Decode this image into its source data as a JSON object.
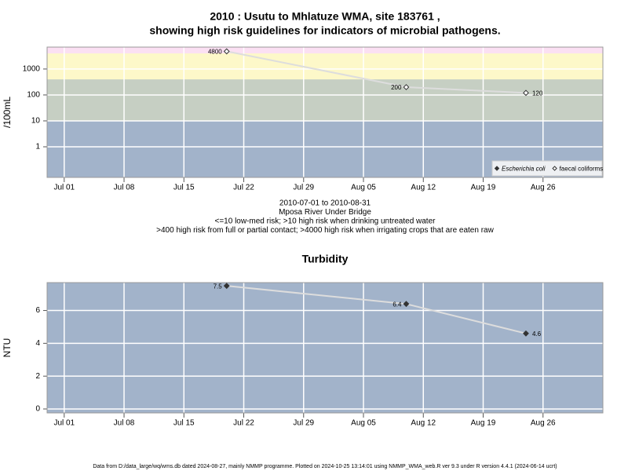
{
  "chart_data": [
    {
      "type": "line",
      "title": [
        "2010 : Usutu to Mhlatuze WMA, site 183761 ,",
        "showing high risk guidelines for indicators of microbial pathogens."
      ],
      "notes": [
        "2010-07-01 to 2010-08-31",
        "Mposa River Under Bridge",
        "<=10 low-med risk; >10 high risk when drinking untreated water",
        ">400 high risk from full or partial contact; >4000 high risk when irrigating crops that are eaten raw"
      ],
      "ylabel": "/100mL",
      "log_y": true,
      "x": [
        "2010-07-20",
        "2010-08-10",
        "2010-08-24"
      ],
      "series": [
        {
          "name": "Escherichia coli",
          "color": "#333333",
          "filled": true,
          "values": [
            null,
            null,
            null
          ]
        },
        {
          "name": "faecal coliforms",
          "color": "#333333",
          "filled": false,
          "values": [
            4800,
            200,
            120
          ]
        }
      ],
      "thresholds": [
        10,
        400,
        4000
      ],
      "band_colors": [
        "#a2b3ca",
        "#c6cfc3",
        "#fdf8c9",
        "#fbe0f3"
      ],
      "line_color": "#dddddd",
      "xlim": [
        "2010-06-29",
        "2010-09-02"
      ],
      "xticks": [
        {
          "value": "2010-07-01",
          "label": "Jul 01"
        },
        {
          "value": "2010-07-08",
          "label": "Jul 08"
        },
        {
          "value": "2010-07-15",
          "label": "Jul 15"
        },
        {
          "value": "2010-07-22",
          "label": "Jul 22"
        },
        {
          "value": "2010-07-29",
          "label": "Jul 29"
        },
        {
          "value": "2010-08-05",
          "label": "Aug 05"
        },
        {
          "value": "2010-08-12",
          "label": "Aug 12"
        },
        {
          "value": "2010-08-19",
          "label": "Aug 19"
        },
        {
          "value": "2010-08-26",
          "label": "Aug 26"
        }
      ],
      "ylim": [
        0.066,
        7000
      ],
      "yticks": [
        1,
        10,
        100,
        1000
      ],
      "grid": true,
      "legend": "bottom-right"
    },
    {
      "type": "line",
      "title": [
        "Turbidity"
      ],
      "ylabel": "NTU",
      "log_y": false,
      "x": [
        "2010-07-20",
        "2010-08-10",
        "2010-08-24"
      ],
      "series": [
        {
          "name": "Turbidity",
          "color": "#333333",
          "filled": true,
          "values": [
            7.5,
            6.4,
            4.6
          ]
        }
      ],
      "band_colors": [
        "#a2b3ca"
      ],
      "line_color": "#dddddd",
      "xlim": [
        "2010-06-29",
        "2010-09-02"
      ],
      "xticks": [
        {
          "value": "2010-07-01",
          "label": "Jul 01"
        },
        {
          "value": "2010-07-08",
          "label": "Jul 08"
        },
        {
          "value": "2010-07-15",
          "label": "Jul 15"
        },
        {
          "value": "2010-07-22",
          "label": "Jul 22"
        },
        {
          "value": "2010-07-29",
          "label": "Jul 29"
        },
        {
          "value": "2010-08-05",
          "label": "Aug 05"
        },
        {
          "value": "2010-08-12",
          "label": "Aug 12"
        },
        {
          "value": "2010-08-19",
          "label": "Aug 19"
        },
        {
          "value": "2010-08-26",
          "label": "Aug 26"
        }
      ],
      "ylim": [
        -0.24,
        7.7
      ],
      "yticks": [
        0,
        2,
        4,
        6
      ],
      "grid": true
    }
  ],
  "footer": "Data from D:/data_large/wq/wms.db dated 2024-08-27, mainly NMMP programme. Plotted on 2024-10-25 13:14:01 using NMMP_WMA_web.R ver 9.3 under R version 4.4.1 (2024-06-14 ucrt)"
}
